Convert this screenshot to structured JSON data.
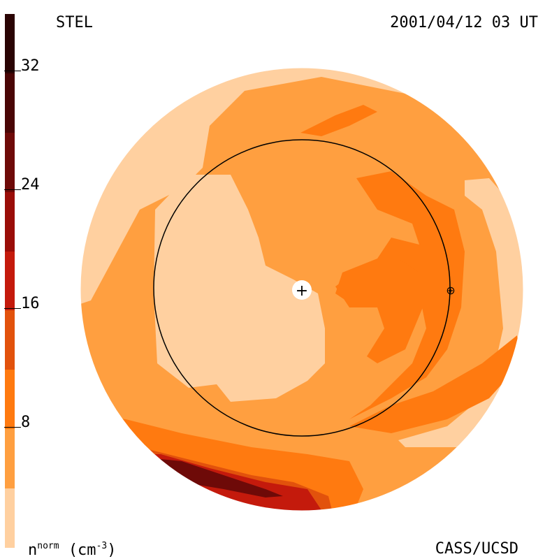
{
  "header": {
    "observatory": "STEL",
    "datetime": "2001/04/12 03 UT"
  },
  "footer": {
    "unit_base": "n",
    "unit_super": "norm",
    "unit_rest": "(cm",
    "unit_exp": "-3",
    "unit_close": ")",
    "credit": "CASS/UCSD"
  },
  "colorbar": {
    "ticks": [
      "32",
      "24",
      "16",
      "8"
    ],
    "levels": [
      "#2a0404",
      "#4a0606",
      "#6e0a08",
      "#9a0d08",
      "#c41a0c",
      "#e2520c",
      "#ff7a10",
      "#ff9f40",
      "#ffd0a0"
    ]
  },
  "map": {
    "sun_marker": "+",
    "earth_marker": "⊕"
  }
}
